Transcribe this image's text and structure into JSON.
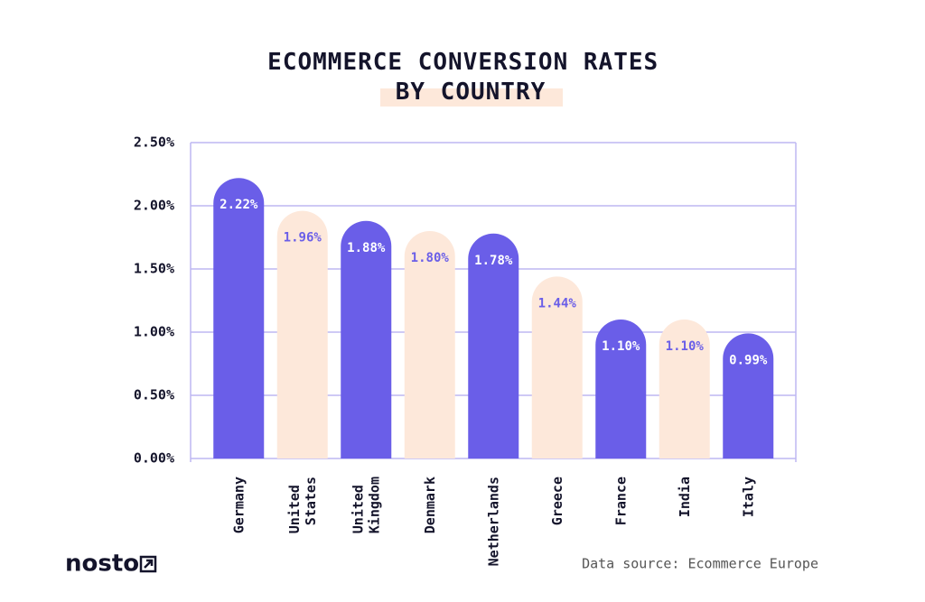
{
  "chart_data": {
    "type": "bar",
    "title": "ECOMMERCE CONVERSION RATES BY COUNTRY",
    "categories": [
      "Germany",
      "United States",
      "United Kingdom",
      "Denmark",
      "Netherlands",
      "Greece",
      "France",
      "India",
      "Italy"
    ],
    "values": [
      2.22,
      1.96,
      1.88,
      1.8,
      1.78,
      1.44,
      1.1,
      1.1,
      0.99
    ],
    "value_labels": [
      "2.22%",
      "1.96%",
      "1.88%",
      "1.80%",
      "1.78%",
      "1.44%",
      "1.10%",
      "1.10%",
      "0.99%"
    ],
    "colors": [
      "#6a5ee8",
      "#fde8da",
      "#6a5ee8",
      "#fde8da",
      "#6a5ee8",
      "#fde8da",
      "#6a5ee8",
      "#fde8da",
      "#6a5ee8"
    ],
    "ylim": [
      0,
      2.5
    ],
    "yticks": [
      {
        "value": 0,
        "label": "0.00%"
      },
      {
        "value": 0.5,
        "label": "0.50%"
      },
      {
        "value": 1,
        "label": "1.00%"
      },
      {
        "value": 1.5,
        "label": "1.50%"
      },
      {
        "value": 2,
        "label": "2.00%"
      },
      {
        "value": 2.5,
        "label": "2.50%"
      }
    ],
    "grid": true,
    "source": "Data source: Ecommerce Europe",
    "logo": "nosto"
  }
}
